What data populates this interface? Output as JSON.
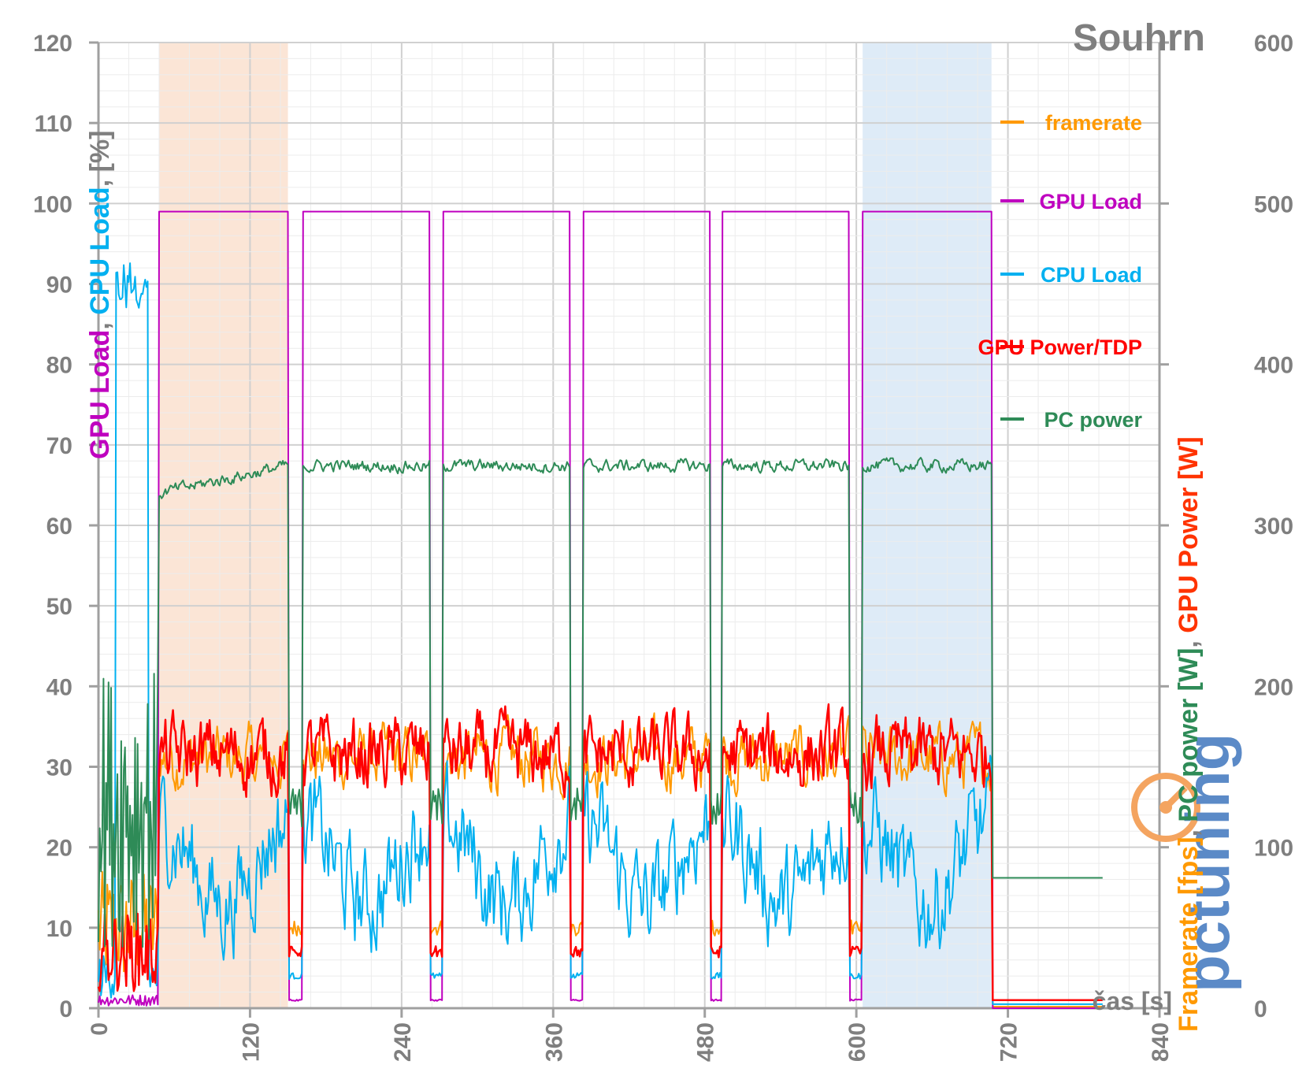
{
  "chart_data": {
    "type": "line",
    "title": "Souhrn",
    "xlabel": "čas [s]",
    "ylabel_left_parts": [
      {
        "text": "GPU Load",
        "color": "#bf00bf"
      },
      {
        "text": ", ",
        "color": "#7f7f7f"
      },
      {
        "text": "CPU Load",
        "color": "#00b0f0"
      },
      {
        "text": ", [%]",
        "color": "#7f7f7f"
      }
    ],
    "ylabel_right_parts": [
      {
        "text": "Framerate [fps]",
        "color": "#ff9900"
      },
      {
        "text": ", ",
        "color": "#7f7f7f"
      },
      {
        "text": "PC power [W]",
        "color": "#2e8b57"
      },
      {
        "text": ", ",
        "color": "#7f7f7f"
      },
      {
        "text": "GPU Power [W]",
        "color": "#ff3300"
      }
    ],
    "xlim": [
      0,
      840
    ],
    "ylim_left": [
      0,
      120
    ],
    "ylim_right": [
      0,
      600
    ],
    "x_ticks": [
      0,
      120,
      240,
      360,
      480,
      600,
      720,
      840
    ],
    "y_left_ticks": [
      0,
      10,
      20,
      30,
      40,
      50,
      60,
      70,
      80,
      90,
      100,
      110,
      120
    ],
    "y_right_ticks": [
      0,
      100,
      200,
      300,
      400,
      500,
      600
    ],
    "grid": true,
    "legend_position": "right",
    "shaded_regions": [
      {
        "x_start": 48,
        "x_end": 150,
        "color": "#fbe5d6"
      },
      {
        "x_start": 605,
        "x_end": 707,
        "color": "#deebf7"
      }
    ],
    "segments": [
      {
        "start": 48,
        "end": 150
      },
      {
        "start": 162,
        "end": 262
      },
      {
        "start": 273,
        "end": 373
      },
      {
        "start": 384,
        "end": 484
      },
      {
        "start": 494,
        "end": 594
      },
      {
        "start": 605,
        "end": 707
      }
    ],
    "series": [
      {
        "name": "framerate",
        "axis": "right",
        "color": "#ff9900",
        "active_mean": 155,
        "active_amp": 15,
        "idle_value": 50,
        "end_value": 1
      },
      {
        "name": "GPU Load",
        "axis": "left",
        "color": "#bf00bf",
        "active_mean": 99,
        "active_amp": 0,
        "idle_value": 1,
        "end_value": 0
      },
      {
        "name": "CPU Load",
        "axis": "left",
        "color": "#00b0f0",
        "active_mean": 18,
        "active_amp": 5,
        "idle_value": 4,
        "end_value": 0.5,
        "startup_peak": 93
      },
      {
        "name": "GPU Power/TDP",
        "axis": "left",
        "color": "#ff0000",
        "active_mean": 31.5,
        "active_amp": 3.5,
        "idle_value": 7,
        "end_value": 1
      },
      {
        "name": "PC power",
        "axis": "right",
        "color": "#2e8b57",
        "active_mean": 337,
        "active_amp": 3,
        "idle_value": 125,
        "end_value": 81,
        "first_segment_start": 320
      }
    ],
    "watermark": "pctuning"
  }
}
